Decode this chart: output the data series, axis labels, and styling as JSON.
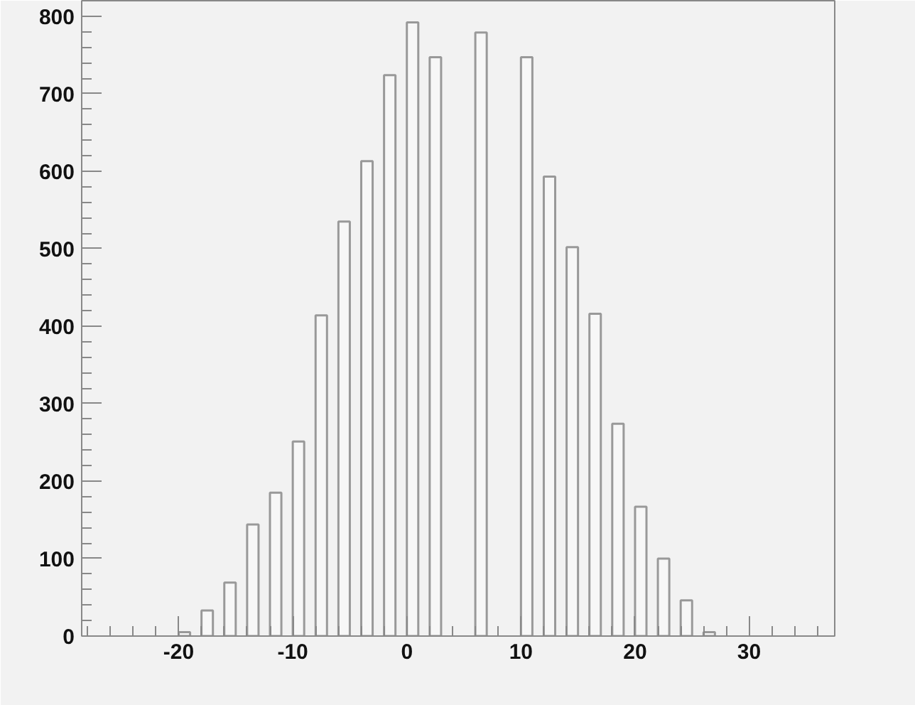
{
  "chart_data": {
    "type": "histogram",
    "bins": [
      -28.5,
      -26.5,
      -24.5,
      -22.5,
      -20.5,
      -18.5,
      -16.5,
      -14.5,
      -12.5,
      -10.5,
      -8.5,
      -6.5,
      -4.5,
      -2.5,
      -0.5,
      1.5,
      3.5,
      5.5,
      7.5,
      9.5,
      11.5,
      13.5,
      15.5,
      17.5,
      19.5,
      21.5,
      23.5,
      25.5,
      27.5,
      29.5,
      31.5,
      33.5,
      35.5,
      37.5
    ],
    "values": [
      0,
      0,
      0,
      0,
      5,
      33,
      69,
      144,
      185,
      251,
      414,
      535,
      613,
      724,
      792,
      747,
      null,
      779,
      null,
      747,
      593,
      502,
      416,
      274,
      167,
      100,
      46,
      5,
      null,
      0,
      0,
      0,
      0
    ],
    "color": "#f7f7f7",
    "xlim": [
      -28.5,
      37.5
    ],
    "xticks": [
      -20,
      -10,
      0,
      10,
      20,
      30
    ],
    "ylim": [
      0,
      820
    ],
    "yticks": [
      0,
      100,
      200,
      300,
      400,
      500,
      600,
      700,
      800
    ],
    "grid": false
  }
}
